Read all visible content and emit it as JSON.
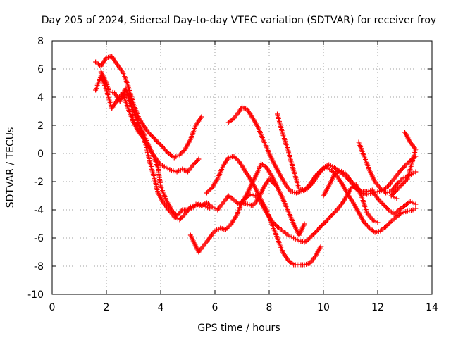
{
  "chart_data": {
    "type": "scatter",
    "title": "Day 205 of 2024, Sidereal Day-to-day VTEC variation (SDTVAR) for receiver froy",
    "xlabel": "GPS time / hours",
    "ylabel": "SDTVAR / TECUs",
    "xlim": [
      0,
      14
    ],
    "ylim": [
      -10,
      8
    ],
    "x_ticks": [
      0,
      2,
      4,
      6,
      8,
      10,
      12,
      14
    ],
    "y_ticks": [
      -10,
      -8,
      -6,
      -4,
      -2,
      0,
      2,
      4,
      6,
      8
    ],
    "grid": true,
    "marker": "plus",
    "colors": {
      "series": "#ff0000",
      "grid": "#a0a0a0",
      "axis": "#000000"
    },
    "series": [
      {
        "points": [
          [
            1.6,
            6.5
          ],
          [
            1.8,
            6.2
          ],
          [
            2.0,
            6.8
          ],
          [
            2.2,
            6.9
          ],
          [
            2.4,
            6.3
          ],
          [
            2.6,
            5.8
          ],
          [
            2.8,
            4.8
          ],
          [
            3.0,
            3.5
          ],
          [
            3.2,
            2.5
          ],
          [
            3.3,
            2.2
          ],
          [
            3.5,
            1.6
          ],
          [
            3.7,
            1.2
          ],
          [
            3.9,
            0.8
          ],
          [
            4.1,
            0.4
          ],
          [
            4.3,
            0.0
          ],
          [
            4.5,
            -0.3
          ],
          [
            4.7,
            -0.1
          ],
          [
            4.9,
            0.3
          ],
          [
            5.1,
            1.0
          ],
          [
            5.3,
            2.0
          ],
          [
            5.5,
            2.6
          ]
        ]
      },
      {
        "points": [
          [
            1.6,
            4.5
          ],
          [
            1.8,
            5.5
          ],
          [
            2.0,
            4.5
          ],
          [
            2.2,
            3.2
          ],
          [
            2.4,
            3.8
          ],
          [
            2.6,
            4.3
          ],
          [
            2.8,
            3.2
          ],
          [
            3.0,
            2.2
          ],
          [
            3.2,
            1.5
          ],
          [
            3.4,
            1.0
          ],
          [
            3.6,
            0.3
          ],
          [
            3.8,
            -0.3
          ],
          [
            4.0,
            -0.8
          ],
          [
            4.2,
            -1.0
          ],
          [
            4.4,
            -1.2
          ],
          [
            4.6,
            -1.3
          ],
          [
            4.8,
            -1.1
          ],
          [
            5.0,
            -1.3
          ],
          [
            5.2,
            -0.8
          ],
          [
            5.4,
            -0.4
          ]
        ]
      },
      {
        "points": [
          [
            1.8,
            5.8
          ],
          [
            2.0,
            5.0
          ],
          [
            2.1,
            4.4
          ],
          [
            2.3,
            4.3
          ],
          [
            2.5,
            3.7
          ],
          [
            2.7,
            4.6
          ],
          [
            2.9,
            3.8
          ],
          [
            3.0,
            2.2
          ],
          [
            3.2,
            1.9
          ],
          [
            3.4,
            1.0
          ],
          [
            3.6,
            -0.6
          ],
          [
            3.8,
            -2.0
          ],
          [
            3.9,
            -2.8
          ],
          [
            4.1,
            -3.5
          ],
          [
            4.3,
            -4.0
          ],
          [
            4.5,
            -4.5
          ],
          [
            4.7,
            -4.7
          ],
          [
            4.9,
            -4.3
          ],
          [
            5.1,
            -3.8
          ],
          [
            5.3,
            -3.6
          ],
          [
            5.5,
            -3.7
          ],
          [
            5.7,
            -3.5
          ],
          [
            5.9,
            -3.8
          ],
          [
            6.1,
            -4.0
          ],
          [
            6.3,
            -3.5
          ],
          [
            6.5,
            -3.0
          ],
          [
            6.7,
            -3.3
          ],
          [
            6.9,
            -3.6
          ],
          [
            7.1,
            -3.2
          ],
          [
            7.3,
            -2.9
          ],
          [
            7.5,
            -3.0
          ],
          [
            7.7,
            -3.5
          ],
          [
            7.9,
            -4.2
          ],
          [
            8.1,
            -4.8
          ],
          [
            8.3,
            -5.2
          ],
          [
            8.5,
            -5.5
          ],
          [
            8.7,
            -5.8
          ],
          [
            8.9,
            -6.0
          ],
          [
            9.1,
            -6.2
          ],
          [
            9.3,
            -6.3
          ],
          [
            9.5,
            -6.0
          ],
          [
            9.7,
            -5.6
          ],
          [
            9.9,
            -5.2
          ],
          [
            10.1,
            -4.8
          ],
          [
            10.3,
            -4.4
          ],
          [
            10.5,
            -4.0
          ],
          [
            10.7,
            -3.5
          ],
          [
            10.9,
            -2.9
          ],
          [
            11.0,
            -2.5
          ],
          [
            11.2,
            -2.2
          ],
          [
            11.4,
            -3.0
          ],
          [
            11.6,
            -4.2
          ],
          [
            11.8,
            -4.7
          ],
          [
            12.0,
            -4.9
          ]
        ]
      },
      {
        "points": [
          [
            2.6,
            4.3
          ],
          [
            2.8,
            4.0
          ],
          [
            3.0,
            3.0
          ],
          [
            3.2,
            2.0
          ],
          [
            3.4,
            1.3
          ],
          [
            3.5,
            0.8
          ],
          [
            3.7,
            0.0
          ],
          [
            3.9,
            -1.0
          ],
          [
            4.0,
            -2.3
          ],
          [
            4.2,
            -3.3
          ],
          [
            4.4,
            -4.0
          ],
          [
            4.6,
            -4.4
          ],
          [
            4.8,
            -4.0
          ],
          [
            5.0,
            -4.0
          ],
          [
            5.2,
            -3.8
          ],
          [
            5.4,
            -3.6
          ],
          [
            5.6,
            -3.7
          ],
          [
            5.8,
            -3.9
          ]
        ]
      },
      {
        "points": [
          [
            5.7,
            -2.8
          ],
          [
            5.9,
            -2.4
          ],
          [
            6.1,
            -1.8
          ],
          [
            6.3,
            -0.9
          ],
          [
            6.5,
            -0.3
          ],
          [
            6.7,
            -0.2
          ],
          [
            6.9,
            -0.6
          ],
          [
            7.1,
            -1.2
          ],
          [
            7.3,
            -1.8
          ],
          [
            7.5,
            -2.5
          ],
          [
            7.7,
            -3.3
          ],
          [
            7.9,
            -4.0
          ],
          [
            8.1,
            -5.0
          ],
          [
            8.3,
            -6.0
          ],
          [
            8.5,
            -7.0
          ],
          [
            8.7,
            -7.6
          ],
          [
            8.9,
            -7.9
          ],
          [
            9.1,
            -7.9
          ],
          [
            9.3,
            -7.9
          ],
          [
            9.5,
            -7.8
          ],
          [
            9.7,
            -7.3
          ],
          [
            9.9,
            -6.6
          ]
        ]
      },
      {
        "points": [
          [
            5.1,
            -5.8
          ],
          [
            5.3,
            -6.6
          ],
          [
            5.4,
            -7.0
          ],
          [
            5.6,
            -6.5
          ],
          [
            5.8,
            -6.0
          ],
          [
            6.0,
            -5.5
          ],
          [
            6.2,
            -5.3
          ],
          [
            6.4,
            -5.4
          ],
          [
            6.6,
            -5.0
          ],
          [
            6.8,
            -4.4
          ],
          [
            7.0,
            -3.5
          ],
          [
            7.2,
            -2.8
          ],
          [
            7.4,
            -2.0
          ],
          [
            7.6,
            -1.2
          ],
          [
            7.7,
            -0.7
          ],
          [
            7.9,
            -1.0
          ],
          [
            8.1,
            -1.6
          ],
          [
            8.3,
            -2.4
          ],
          [
            8.5,
            -3.2
          ],
          [
            8.7,
            -4.1
          ],
          [
            8.9,
            -5.0
          ],
          [
            9.1,
            -5.8
          ],
          [
            9.3,
            -5.0
          ]
        ]
      },
      {
        "points": [
          [
            6.5,
            2.2
          ],
          [
            6.7,
            2.5
          ],
          [
            6.9,
            3.0
          ],
          [
            7.0,
            3.3
          ],
          [
            7.2,
            3.1
          ],
          [
            7.4,
            2.5
          ],
          [
            7.6,
            1.8
          ],
          [
            7.8,
            0.9
          ],
          [
            8.0,
            0.0
          ],
          [
            8.2,
            -0.8
          ],
          [
            8.4,
            -1.5
          ],
          [
            8.6,
            -2.2
          ],
          [
            8.8,
            -2.7
          ],
          [
            9.0,
            -2.8
          ],
          [
            9.2,
            -2.7
          ],
          [
            9.4,
            -2.5
          ],
          [
            9.6,
            -2.1
          ],
          [
            9.8,
            -1.5
          ],
          [
            10.0,
            -1.0
          ],
          [
            10.2,
            -0.8
          ],
          [
            10.4,
            -1.0
          ],
          [
            10.6,
            -1.3
          ],
          [
            10.8,
            -1.6
          ],
          [
            11.0,
            -2.0
          ],
          [
            11.2,
            -2.5
          ],
          [
            11.4,
            -2.8
          ],
          [
            11.6,
            -2.9
          ],
          [
            11.8,
            -2.8
          ],
          [
            12.0,
            -2.7
          ],
          [
            12.2,
            -2.6
          ],
          [
            12.4,
            -2.3
          ],
          [
            12.6,
            -1.8
          ],
          [
            12.8,
            -1.3
          ],
          [
            13.0,
            -0.9
          ],
          [
            13.2,
            -0.5
          ],
          [
            13.4,
            -0.2
          ]
        ]
      },
      {
        "points": [
          [
            8.3,
            2.8
          ],
          [
            8.5,
            1.4
          ],
          [
            8.7,
            0.2
          ],
          [
            8.9,
            -1.2
          ],
          [
            9.1,
            -2.5
          ],
          [
            9.3,
            -2.6
          ],
          [
            9.5,
            -2.2
          ],
          [
            9.7,
            -1.6
          ],
          [
            9.9,
            -1.2
          ],
          [
            10.1,
            -1.0
          ],
          [
            10.3,
            -1.2
          ],
          [
            10.5,
            -1.6
          ],
          [
            10.7,
            -2.2
          ],
          [
            10.9,
            -2.9
          ],
          [
            11.1,
            -3.5
          ],
          [
            11.3,
            -4.2
          ],
          [
            11.5,
            -4.9
          ],
          [
            11.7,
            -5.3
          ],
          [
            11.9,
            -5.6
          ],
          [
            12.1,
            -5.5
          ],
          [
            12.3,
            -5.2
          ],
          [
            12.5,
            -4.8
          ],
          [
            12.7,
            -4.5
          ],
          [
            12.9,
            -4.2
          ],
          [
            13.1,
            -4.1
          ],
          [
            13.3,
            -4.0
          ],
          [
            13.4,
            -3.9
          ]
        ]
      },
      {
        "points": [
          [
            10.0,
            -3.0
          ],
          [
            10.2,
            -2.3
          ],
          [
            10.4,
            -1.5
          ],
          [
            10.6,
            -1.2
          ],
          [
            10.8,
            -1.4
          ],
          [
            11.0,
            -1.9
          ],
          [
            11.2,
            -2.4
          ],
          [
            11.4,
            -2.7
          ],
          [
            11.6,
            -2.7
          ],
          [
            11.8,
            -2.6
          ],
          [
            12.0,
            -3.2
          ],
          [
            12.2,
            -3.6
          ],
          [
            12.4,
            -4.0
          ],
          [
            12.6,
            -4.3
          ],
          [
            12.8,
            -4.0
          ],
          [
            13.0,
            -3.7
          ],
          [
            13.2,
            -3.4
          ],
          [
            13.4,
            -3.6
          ]
        ]
      },
      {
        "points": [
          [
            11.3,
            0.8
          ],
          [
            11.5,
            -0.2
          ],
          [
            11.7,
            -1.2
          ],
          [
            11.9,
            -2.0
          ],
          [
            12.1,
            -2.5
          ],
          [
            12.3,
            -2.8
          ],
          [
            12.5,
            -2.7
          ],
          [
            12.7,
            -2.2
          ],
          [
            12.9,
            -1.8
          ],
          [
            13.1,
            -1.6
          ],
          [
            13.3,
            -1.4
          ],
          [
            13.4,
            -1.3
          ]
        ]
      },
      {
        "points": [
          [
            13.0,
            1.5
          ],
          [
            13.2,
            0.8
          ],
          [
            13.4,
            0.3
          ],
          [
            13.1,
            -1.8
          ],
          [
            12.5,
            -3.0
          ],
          [
            12.7,
            -3.2
          ]
        ]
      },
      {
        "points": [
          [
            7.0,
            -3.5
          ],
          [
            7.2,
            -3.6
          ],
          [
            7.4,
            -3.7
          ],
          [
            7.6,
            -3.2
          ],
          [
            7.8,
            -2.4
          ],
          [
            8.0,
            -1.8
          ],
          [
            8.2,
            -2.2
          ]
        ]
      }
    ]
  }
}
